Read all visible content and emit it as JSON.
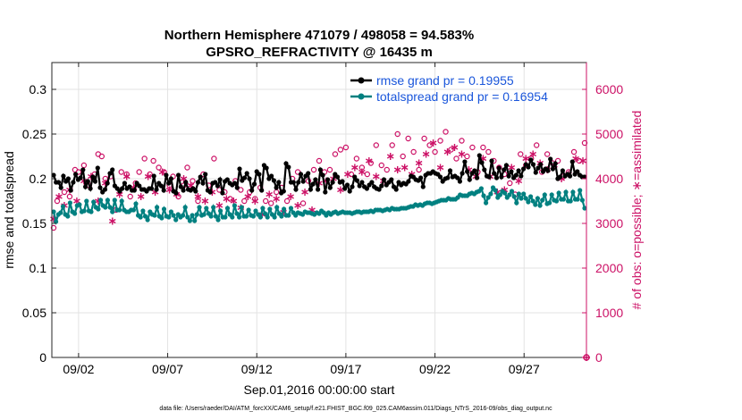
{
  "chart_data": {
    "type": "line",
    "title": "Northern Hemisphere 471079 / 498058 = 94.583%",
    "subtitle": "GPSRO_REFRACTIVITY @ 16435 m",
    "xlabel": "Sep.01,2016 00:00:00 start",
    "ylabel_left": "rmse and totalspread",
    "ylabel_right": "# of obs: o=possible; ∗=assimilated",
    "footer": "data file: /Users/raeder/DAI/ATM_forcXX/CAM6_setup/f.e21.FHIST_BGC.f09_025.CAM6assim.011/Diags_NTrS_2016-09/obs_diag_output.nc",
    "xlim": [
      0.5,
      30.5
    ],
    "ylim_left": [
      0,
      0.33
    ],
    "ylim_right": [
      0,
      6600
    ],
    "xticks": [
      2,
      7,
      12,
      17,
      22,
      27
    ],
    "xtick_labels": [
      "09/02",
      "09/07",
      "09/12",
      "09/17",
      "09/22",
      "09/27"
    ],
    "yticks_left": [
      0,
      0.05,
      0.1,
      0.15,
      0.2,
      0.25,
      0.3
    ],
    "ytick_labels_left": [
      "0",
      "0.05",
      "0.1",
      "0.15",
      "0.2",
      "0.25",
      "0.3"
    ],
    "yticks_right": [
      0,
      1000,
      2000,
      3000,
      4000,
      5000,
      6000
    ],
    "ytick_labels_right": [
      "0",
      "1000",
      "2000",
      "3000",
      "4000",
      "5000",
      "6000"
    ],
    "grid": true,
    "legend_position": "top-right",
    "series": [
      {
        "name": "rmse grand pr = 0.19955",
        "axis": "left",
        "color": "#000000",
        "marker": "filled-circle",
        "values": [
          0.204,
          0.196,
          0.196,
          0.19,
          0.203,
          0.197,
          0.2,
          0.187,
          0.196,
          0.205,
          0.199,
          0.201,
          0.21,
          0.191,
          0.197,
          0.189,
          0.202,
          0.197,
          0.212,
          0.19,
          0.185,
          0.188,
          0.195,
          0.206,
          0.21,
          0.192,
          0.189,
          0.186,
          0.189,
          0.195,
          0.189,
          0.191,
          0.187,
          0.187,
          0.195,
          0.192,
          0.188,
          0.188,
          0.186,
          0.189,
          0.189,
          0.203,
          0.188,
          0.195,
          0.192,
          0.187,
          0.204,
          0.195,
          0.2,
          0.186,
          0.184,
          0.204,
          0.191,
          0.187,
          0.196,
          0.188,
          0.187,
          0.189,
          0.186,
          0.196,
          0.202,
          0.195,
          0.205,
          0.187,
          0.185,
          0.195,
          0.196,
          0.192,
          0.199,
          0.184,
          0.197,
          0.199,
          0.195,
          0.193,
          0.195,
          0.19,
          0.211,
          0.198,
          0.201,
          0.206,
          0.2,
          0.187,
          0.194,
          0.208,
          0.205,
          0.187,
          0.215,
          0.212,
          0.2,
          0.203,
          0.198,
          0.19,
          0.196,
          0.184,
          0.186,
          0.217,
          0.213,
          0.196,
          0.196,
          0.188,
          0.196,
          0.205,
          0.197,
          0.203,
          0.206,
          0.188,
          0.194,
          0.199,
          0.188,
          0.21,
          0.204,
          0.185,
          0.199,
          0.19,
          0.196,
          0.205,
          0.202,
          0.196,
          0.197,
          0.189,
          0.193,
          0.186,
          0.191,
          0.202,
          0.198,
          0.192,
          0.196,
          0.191,
          0.189,
          0.193,
          0.196,
          0.191,
          0.189,
          0.188,
          0.192,
          0.199,
          0.193,
          0.196,
          0.199,
          0.191,
          0.188,
          0.196,
          0.193,
          0.195,
          0.194,
          0.197,
          0.203,
          0.202,
          0.199,
          0.198,
          0.201,
          0.191,
          0.204,
          0.206,
          0.206,
          0.208,
          0.206,
          0.205,
          0.202,
          0.197,
          0.2,
          0.201,
          0.209,
          0.202,
          0.203,
          0.201,
          0.197,
          0.206,
          0.219,
          0.208,
          0.199,
          0.206,
          0.209,
          0.201,
          0.226,
          0.218,
          0.21,
          0.203,
          0.202,
          0.22,
          0.206,
          0.201,
          0.212,
          0.202,
          0.21,
          0.215,
          0.203,
          0.208,
          0.201,
          0.204,
          0.209,
          0.203,
          0.211,
          0.216,
          0.213,
          0.221,
          0.216,
          0.207,
          0.212,
          0.216,
          0.208,
          0.211,
          0.209,
          0.222,
          0.211,
          0.217,
          0.2,
          0.202,
          0.209,
          0.203,
          0.205,
          0.203,
          0.219,
          0.205,
          0.208,
          0.204,
          0.202,
          0.202
        ]
      },
      {
        "name": "totalspread grand pr = 0.16954",
        "axis": "left",
        "color": "#008080",
        "marker": "filled-circle",
        "values": [
          0.163,
          0.152,
          0.16,
          0.162,
          0.169,
          0.16,
          0.158,
          0.173,
          0.163,
          0.161,
          0.17,
          0.171,
          0.163,
          0.164,
          0.175,
          0.164,
          0.163,
          0.174,
          0.168,
          0.166,
          0.176,
          0.17,
          0.168,
          0.176,
          0.168,
          0.163,
          0.176,
          0.165,
          0.165,
          0.175,
          0.165,
          0.163,
          0.163,
          0.165,
          0.165,
          0.172,
          0.159,
          0.157,
          0.164,
          0.158,
          0.154,
          0.163,
          0.16,
          0.159,
          0.168,
          0.158,
          0.156,
          0.166,
          0.158,
          0.157,
          0.163,
          0.159,
          0.154,
          0.16,
          0.157,
          0.159,
          0.168,
          0.157,
          0.153,
          0.159,
          0.153,
          0.16,
          0.168,
          0.159,
          0.16,
          0.167,
          0.161,
          0.158,
          0.168,
          0.158,
          0.154,
          0.164,
          0.157,
          0.157,
          0.167,
          0.16,
          0.157,
          0.17,
          0.161,
          0.157,
          0.168,
          0.158,
          0.158,
          0.165,
          0.159,
          0.158,
          0.164,
          0.16,
          0.157,
          0.167,
          0.161,
          0.157,
          0.166,
          0.16,
          0.157,
          0.168,
          0.161,
          0.158,
          0.166,
          0.159,
          0.159,
          0.167,
          0.162,
          0.159,
          0.162,
          0.161,
          0.16,
          0.163,
          0.162,
          0.162,
          0.161,
          0.16,
          0.162,
          0.161,
          0.164,
          0.162,
          0.159,
          0.162,
          0.16,
          0.162,
          0.163,
          0.161,
          0.162,
          0.163,
          0.162,
          0.162,
          0.162,
          0.161,
          0.162,
          0.163,
          0.163,
          0.162,
          0.163,
          0.163,
          0.163,
          0.164,
          0.163,
          0.165,
          0.165,
          0.165,
          0.164,
          0.165,
          0.166,
          0.165,
          0.167,
          0.166,
          0.166,
          0.166,
          0.167,
          0.167,
          0.167,
          0.168,
          0.169,
          0.169,
          0.171,
          0.17,
          0.171,
          0.17,
          0.172,
          0.173,
          0.173,
          0.172,
          0.173,
          0.174,
          0.175,
          0.176,
          0.176,
          0.176,
          0.178,
          0.177,
          0.177,
          0.177,
          0.179,
          0.182,
          0.181,
          0.181,
          0.181,
          0.183,
          0.184,
          0.183,
          0.185,
          0.186,
          0.189,
          0.181,
          0.173,
          0.179,
          0.183,
          0.19,
          0.187,
          0.179,
          0.182,
          0.186,
          0.184,
          0.179,
          0.182,
          0.186,
          0.18,
          0.173,
          0.183,
          0.178,
          0.183,
          0.178,
          0.174,
          0.18,
          0.175,
          0.171,
          0.178,
          0.17,
          0.176,
          0.182,
          0.172,
          0.173,
          0.182,
          0.176,
          0.175,
          0.184,
          0.177,
          0.177,
          0.185,
          0.175,
          0.175,
          0.185,
          0.177,
          0.177,
          0.187,
          0.176,
          0.167
        ]
      },
      {
        "name": "possible",
        "axis": "right",
        "color": "#cc1166",
        "marker": "open-circle",
        "x": [
          0.6,
          0.8,
          1.2,
          1.5,
          1.8,
          2.0,
          2.3,
          2.6,
          2.9,
          3.1,
          3.3,
          3.5,
          3.8,
          4.1,
          4.4,
          4.7,
          4.9,
          5.2,
          5.4,
          5.7,
          6.0,
          6.2,
          6.5,
          6.8,
          7.1,
          7.3,
          7.6,
          7.9,
          8.1,
          8.4,
          8.7,
          9.0,
          9.3,
          9.6,
          9.9,
          10.2,
          10.5,
          10.8,
          11.1,
          11.3,
          11.6,
          11.9,
          12.2,
          12.5,
          12.8,
          13.1,
          13.4,
          13.7,
          14.0,
          14.3,
          14.6,
          14.9,
          15.2,
          15.5,
          15.8,
          16.1,
          16.4,
          16.7,
          17.0,
          17.3,
          17.6,
          17.9,
          18.2,
          18.4,
          18.7,
          19.0,
          19.3,
          19.6,
          19.9,
          20.2,
          20.5,
          20.8,
          21.1,
          21.4,
          21.7,
          22.0,
          22.3,
          22.6,
          22.9,
          23.2,
          23.5,
          23.8,
          24.1,
          24.4,
          24.7,
          25.0,
          25.3,
          25.6,
          25.9,
          26.2,
          26.5,
          26.8,
          27.1,
          27.4,
          27.7,
          28.0,
          28.3,
          28.6,
          28.9,
          29.2,
          29.5,
          29.8,
          30.1,
          30.4
        ],
        "values": [
          2900,
          3500,
          3700,
          3600,
          4200,
          4150,
          4300,
          3850,
          4100,
          4550,
          4500,
          4000,
          4050,
          3300,
          4150,
          4100,
          3600,
          3900,
          4150,
          4450,
          4100,
          4400,
          4250,
          4150,
          3850,
          4050,
          3600,
          3850,
          4250,
          3950,
          3500,
          4100,
          3850,
          4450,
          3750,
          3700,
          3550,
          3950,
          3750,
          3500,
          3700,
          3550,
          3800,
          3500,
          3450,
          3700,
          3800,
          3500,
          4000,
          4150,
          3450,
          3950,
          4200,
          4400,
          4150,
          4200,
          4550,
          4650,
          4700,
          4100,
          4450,
          4250,
          4100,
          4350,
          4750,
          4300,
          4200,
          4750,
          5000,
          4500,
          4900,
          4600,
          4200,
          4900,
          4750,
          4600,
          4850,
          5050,
          4650,
          4450,
          4850,
          4500,
          4700,
          4150,
          4700,
          4600,
          4400,
          4250,
          4100,
          3900,
          3650,
          4550,
          4300,
          4450,
          4750,
          4150,
          4550,
          4350,
          4400,
          4050,
          4150,
          4600,
          4400,
          4800
        ]
      },
      {
        "name": "assimilated",
        "axis": "right",
        "color": "#cc1166",
        "marker": "asterisk",
        "x": [
          0.6,
          0.9,
          1.2,
          1.5,
          1.9,
          2.3,
          2.7,
          3.1,
          3.5,
          3.9,
          4.3,
          4.7,
          5.1,
          5.5,
          5.9,
          6.3,
          6.7,
          7.1,
          7.5,
          7.9,
          8.3,
          8.7,
          9.1,
          9.5,
          9.9,
          10.3,
          10.7,
          11.1,
          11.5,
          11.9,
          12.3,
          12.7,
          13.1,
          13.5,
          13.9,
          14.3,
          14.7,
          15.1,
          15.5,
          15.9,
          16.3,
          16.7,
          17.1,
          17.5,
          17.9,
          18.3,
          18.7,
          19.1,
          19.5,
          19.9,
          20.3,
          20.7,
          21.1,
          21.5,
          21.9,
          22.3,
          22.7,
          23.1,
          23.5,
          23.9,
          24.3,
          24.7,
          25.1,
          25.5,
          25.9,
          26.3,
          26.7,
          27.1,
          27.5,
          27.9,
          28.3,
          28.7,
          29.1,
          29.5,
          29.9,
          30.3
        ],
        "values": [
          3100,
          3600,
          3400,
          3750,
          3500,
          3950,
          4050,
          3500,
          3900,
          3050,
          3650,
          4050,
          3800,
          3600,
          4050,
          3700,
          4150,
          3750,
          3650,
          4000,
          3850,
          3600,
          3500,
          3700,
          3400,
          3550,
          3500,
          3350,
          3600,
          3500,
          3200,
          3650,
          3550,
          3250,
          3600,
          3400,
          3700,
          3300,
          3900,
          3950,
          4000,
          3750,
          4100,
          4250,
          4150,
          4400,
          4050,
          3950,
          4500,
          4200,
          4250,
          4100,
          4350,
          4550,
          4800,
          4250,
          4600,
          4700,
          4550,
          4200,
          4050,
          4450,
          4050,
          3700,
          3750,
          4250,
          3950,
          4450,
          4550,
          4350,
          4200,
          4300,
          4000,
          4100,
          4450,
          4400
        ]
      }
    ]
  }
}
